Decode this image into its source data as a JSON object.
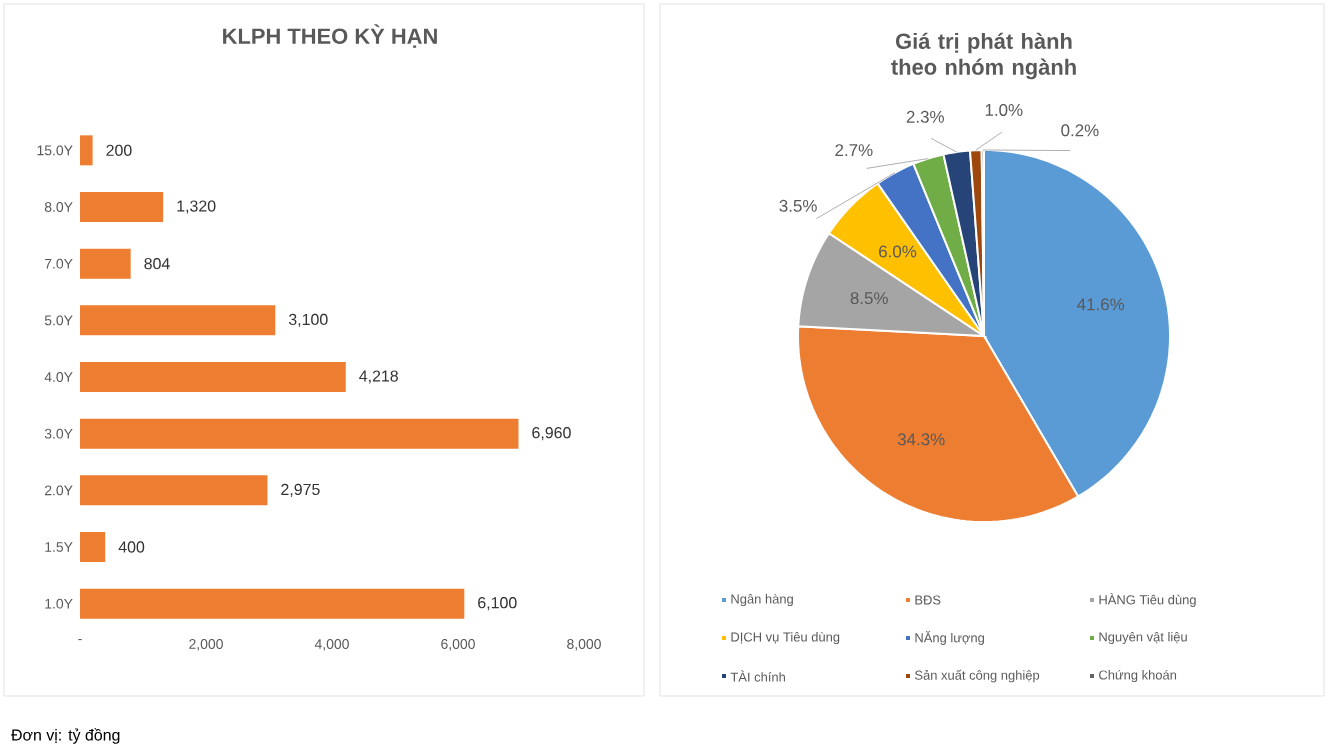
{
  "chart_data": [
    {
      "type": "bar",
      "orientation": "horizontal",
      "title": "KLPH THEO KỲ HẠN",
      "categories": [
        "15.0Y",
        "8.0Y",
        "7.0Y",
        "5.0Y",
        "4.0Y",
        "3.0Y",
        "2.0Y",
        "1.5Y",
        "1.0Y"
      ],
      "values": [
        200,
        1320,
        804,
        3100,
        4218,
        6960,
        2975,
        400,
        6100
      ],
      "value_labels": [
        "200",
        "1,320",
        "804",
        "3,100",
        "4,218",
        "6,960",
        "2,975",
        "400",
        "6,100"
      ],
      "color": "#ed7d31",
      "xlim": [
        0,
        8000
      ],
      "xticks": [
        {
          "value": 0,
          "label": "-"
        },
        {
          "value": 2000,
          "label": "2,000"
        },
        {
          "value": 4000,
          "label": "4,000"
        },
        {
          "value": 6000,
          "label": "6,000"
        },
        {
          "value": 8000,
          "label": "8,000"
        }
      ],
      "annotations": [
        "Đơn vị: tỷ đồng"
      ]
    },
    {
      "type": "pie",
      "title": "Giá trị phát hành theo nhóm ngành",
      "categories": [
        "Ngân hàng",
        "BĐS",
        "HÀNG Tiêu dùng",
        "DỊCH vụ Tiêu dùng",
        "NĂng lượng",
        "Nguyên vật liệu",
        "TÀI chính",
        "Sản xuất công nghiệp",
        "Chứng khoán"
      ],
      "values": [
        41.6,
        34.3,
        8.5,
        6.0,
        3.5,
        2.7,
        2.3,
        1.0,
        0.2
      ],
      "value_labels": [
        "41.6%",
        "34.3%",
        "8.5%",
        "6.0%",
        "3.5%",
        "2.7%",
        "2.3%",
        "1.0%",
        "0.2%"
      ],
      "colors": [
        "#5b9bd5",
        "#ed7d31",
        "#a5a5a5",
        "#ffc000",
        "#4472c4",
        "#70ad47",
        "#264478",
        "#9e480e",
        "#636363"
      ],
      "legend": "bottom"
    }
  ]
}
